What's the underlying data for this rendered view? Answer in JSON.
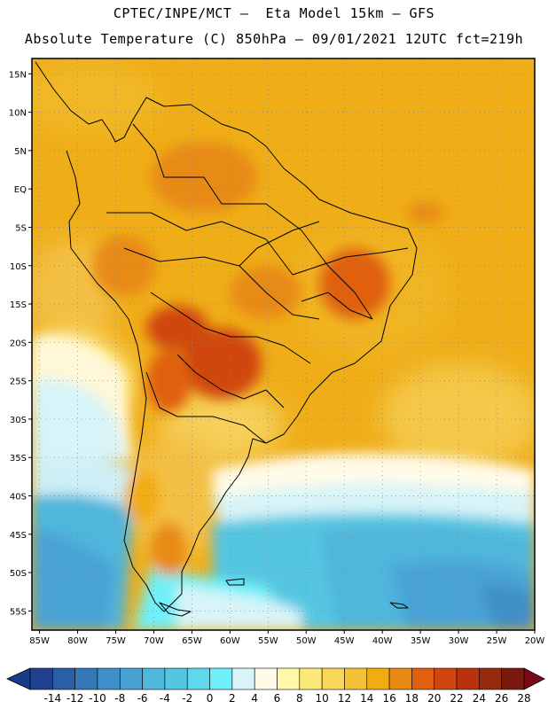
{
  "title": {
    "line1": "CPTEC/INPE/MCT –  Eta Model 15km – GFS",
    "line2": "Absolute Temperature (C) 850hPa – 09/01/2021 12UTC fct=219h"
  },
  "map": {
    "lat_labels": [
      "15N",
      "10N",
      "5N",
      "EQ",
      "5S",
      "10S",
      "15S",
      "20S",
      "25S",
      "30S",
      "35S",
      "40S",
      "45S",
      "50S",
      "55S"
    ],
    "lat_values": [
      15,
      10,
      5,
      0,
      -5,
      -10,
      -15,
      -20,
      -25,
      -30,
      -35,
      -40,
      -45,
      -50,
      -55
    ],
    "lon_labels": [
      "85W",
      "80W",
      "75W",
      "70W",
      "65W",
      "60W",
      "55W",
      "50W",
      "45W",
      "40W",
      "35W",
      "30W",
      "25W",
      "20W"
    ],
    "lon_values": [
      -85,
      -80,
      -75,
      -70,
      -65,
      -60,
      -55,
      -50,
      -45,
      -40,
      -35,
      -30,
      -25,
      -20
    ],
    "lat_range": [
      -57.5,
      17
    ],
    "lon_range": [
      -86,
      -20
    ]
  },
  "colorbar": {
    "labels": [
      "-14",
      "-12",
      "-10",
      "-8",
      "-6",
      "-4",
      "-2",
      "0",
      "2",
      "4",
      "6",
      "8",
      "10",
      "12",
      "14",
      "16",
      "18",
      "20",
      "22",
      "24",
      "26",
      "28"
    ],
    "colors": [
      "#1f3f8f",
      "#2a5fa8",
      "#3478b8",
      "#3f8fc8",
      "#48a3d4",
      "#4fb6dc",
      "#55c6e2",
      "#5fd8ec",
      "#6ff0f8",
      "#d8f4f8",
      "#fffbe8",
      "#fff8a8",
      "#fde87a",
      "#f8d658",
      "#f3c238",
      "#f1ac12",
      "#e88a12",
      "#e06010",
      "#d04610",
      "#b8320e",
      "#962a0c",
      "#7a1a0e"
    ],
    "under_color": "#1a3a8a",
    "over_color": "#7a0a1a"
  }
}
